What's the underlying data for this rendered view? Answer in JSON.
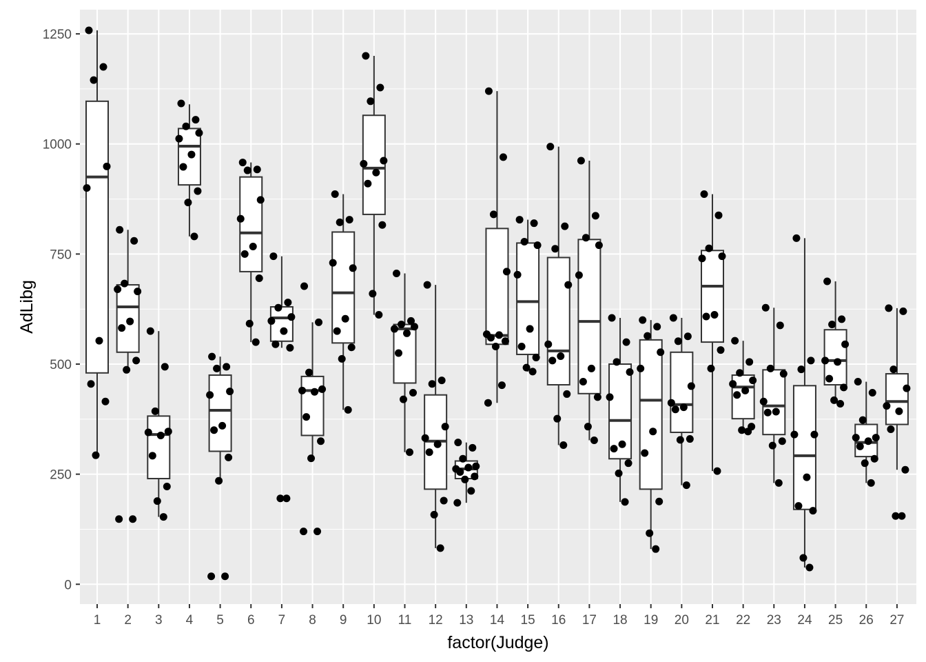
{
  "chart_data": {
    "type": "boxplot",
    "xlabel": "factor(Judge)",
    "ylabel": "AdLibg",
    "ylim": [
      -45,
      1305
    ],
    "yticks": [
      0,
      250,
      500,
      750,
      1000,
      1250
    ],
    "ytick_labels": [
      "0",
      "250",
      "500",
      "750",
      "1000",
      "1250"
    ],
    "categories": [
      "1",
      "2",
      "3",
      "4",
      "5",
      "6",
      "7",
      "8",
      "9",
      "10",
      "11",
      "12",
      "13",
      "14",
      "15",
      "16",
      "17",
      "18",
      "19",
      "20",
      "21",
      "22",
      "23",
      "24",
      "25",
      "26",
      "27"
    ],
    "boxes": [
      {
        "judge": "1",
        "lower_whisker": 293,
        "q1": 480,
        "median": 925,
        "q3": 1097,
        "upper_whisker": 1258
      },
      {
        "judge": "2",
        "lower_whisker": 487,
        "q1": 527,
        "median": 630,
        "q3": 680,
        "upper_whisker": 805
      },
      {
        "judge": "3",
        "lower_whisker": 153,
        "q1": 240,
        "median": 340,
        "q3": 382,
        "upper_whisker": 575
      },
      {
        "judge": "4",
        "lower_whisker": 790,
        "q1": 907,
        "median": 995,
        "q3": 1035,
        "upper_whisker": 1090
      },
      {
        "judge": "5",
        "lower_whisker": 235,
        "q1": 302,
        "median": 395,
        "q3": 475,
        "upper_whisker": 517
      },
      {
        "judge": "6",
        "lower_whisker": 550,
        "q1": 710,
        "median": 798,
        "q3": 925,
        "upper_whisker": 958
      },
      {
        "judge": "7",
        "lower_whisker": 537,
        "q1": 552,
        "median": 605,
        "q3": 630,
        "upper_whisker": 745
      },
      {
        "judge": "8",
        "lower_whisker": 285,
        "q1": 338,
        "median": 440,
        "q3": 472,
        "upper_whisker": 595
      },
      {
        "judge": "9",
        "lower_whisker": 396,
        "q1": 548,
        "median": 662,
        "q3": 800,
        "upper_whisker": 886
      },
      {
        "judge": "10",
        "lower_whisker": 612,
        "q1": 840,
        "median": 945,
        "q3": 1065,
        "upper_whisker": 1200
      },
      {
        "judge": "11",
        "lower_whisker": 300,
        "q1": 457,
        "median": 580,
        "q3": 590,
        "upper_whisker": 706
      },
      {
        "judge": "12",
        "lower_whisker": 82,
        "q1": 216,
        "median": 325,
        "q3": 430,
        "upper_whisker": 680
      },
      {
        "judge": "13",
        "lower_whisker": 185,
        "q1": 240,
        "median": 262,
        "q3": 280,
        "upper_whisker": 322
      },
      {
        "judge": "14",
        "lower_whisker": 412,
        "q1": 545,
        "median": 565,
        "q3": 808,
        "upper_whisker": 1120
      },
      {
        "judge": "15",
        "lower_whisker": 483,
        "q1": 522,
        "median": 642,
        "q3": 775,
        "upper_whisker": 828
      },
      {
        "judge": "16",
        "lower_whisker": 316,
        "q1": 453,
        "median": 530,
        "q3": 742,
        "upper_whisker": 994
      },
      {
        "judge": "17",
        "lower_whisker": 327,
        "q1": 433,
        "median": 597,
        "q3": 783,
        "upper_whisker": 962
      },
      {
        "judge": "18",
        "lower_whisker": 187,
        "q1": 285,
        "median": 372,
        "q3": 500,
        "upper_whisker": 605
      },
      {
        "judge": "19",
        "lower_whisker": 80,
        "q1": 216,
        "median": 418,
        "q3": 555,
        "upper_whisker": 600
      },
      {
        "judge": "20",
        "lower_whisker": 225,
        "q1": 345,
        "median": 408,
        "q3": 527,
        "upper_whisker": 605
      },
      {
        "judge": "21",
        "lower_whisker": 257,
        "q1": 550,
        "median": 677,
        "q3": 758,
        "upper_whisker": 886
      },
      {
        "judge": "22",
        "lower_whisker": 347,
        "q1": 376,
        "median": 448,
        "q3": 475,
        "upper_whisker": 553
      },
      {
        "judge": "23",
        "lower_whisker": 230,
        "q1": 340,
        "median": 405,
        "q3": 487,
        "upper_whisker": 628
      },
      {
        "judge": "24",
        "lower_whisker": 38,
        "q1": 170,
        "median": 292,
        "q3": 451,
        "upper_whisker": 786
      },
      {
        "judge": "25",
        "lower_whisker": 410,
        "q1": 453,
        "median": 508,
        "q3": 578,
        "upper_whisker": 688
      },
      {
        "judge": "26",
        "lower_whisker": 230,
        "q1": 290,
        "median": 322,
        "q3": 363,
        "upper_whisker": 460
      },
      {
        "judge": "27",
        "lower_whisker": 260,
        "q1": 363,
        "median": 415,
        "q3": 478,
        "upper_whisker": 627
      }
    ],
    "points": [
      {
        "judge": "1",
        "values": [
          1258,
          1175,
          1145,
          949,
          900,
          553,
          455,
          415,
          293
        ]
      },
      {
        "judge": "2",
        "values": [
          805,
          780,
          683,
          665,
          670,
          597,
          582,
          508,
          487,
          148,
          148
        ]
      },
      {
        "judge": "3",
        "values": [
          575,
          494,
          393,
          347,
          345,
          338,
          292,
          222,
          189,
          153
        ]
      },
      {
        "judge": "4",
        "values": [
          1092,
          1055,
          1040,
          1025,
          1012,
          976,
          948,
          893,
          867,
          790
        ]
      },
      {
        "judge": "5",
        "values": [
          517,
          494,
          490,
          438,
          430,
          360,
          350,
          288,
          235,
          18,
          18
        ]
      },
      {
        "judge": "6",
        "values": [
          958,
          942,
          940,
          873,
          830,
          767,
          750,
          695,
          592,
          550
        ]
      },
      {
        "judge": "7",
        "values": [
          745,
          640,
          628,
          607,
          598,
          575,
          545,
          537,
          195,
          195
        ]
      },
      {
        "judge": "8",
        "values": [
          677,
          595,
          481,
          443,
          440,
          437,
          380,
          325,
          286,
          120,
          120
        ]
      },
      {
        "judge": "9",
        "values": [
          886,
          828,
          822,
          718,
          730,
          603,
          575,
          538,
          512,
          396
        ]
      },
      {
        "judge": "10",
        "values": [
          1200,
          1128,
          1097,
          962,
          955,
          935,
          910,
          816,
          660,
          612
        ]
      },
      {
        "judge": "11",
        "values": [
          706,
          598,
          590,
          585,
          580,
          570,
          525,
          435,
          420,
          300
        ]
      },
      {
        "judge": "12",
        "values": [
          680,
          463,
          455,
          358,
          332,
          318,
          300,
          190,
          158,
          82
        ]
      },
      {
        "judge": "13",
        "values": [
          322,
          310,
          285,
          268,
          262,
          265,
          255,
          245,
          238,
          212,
          185
        ]
      },
      {
        "judge": "14",
        "values": [
          1120,
          970,
          840,
          710,
          568,
          566,
          560,
          552,
          540,
          452,
          412
        ]
      },
      {
        "judge": "15",
        "values": [
          828,
          820,
          778,
          770,
          703,
          580,
          540,
          515,
          492,
          483
        ]
      },
      {
        "judge": "16",
        "values": [
          994,
          813,
          762,
          680,
          545,
          518,
          508,
          432,
          376,
          316
        ]
      },
      {
        "judge": "17",
        "values": [
          962,
          837,
          787,
          770,
          702,
          490,
          460,
          425,
          358,
          327
        ]
      },
      {
        "judge": "18",
        "values": [
          605,
          550,
          505,
          482,
          425,
          318,
          308,
          275,
          252,
          187
        ]
      },
      {
        "judge": "19",
        "values": [
          600,
          585,
          564,
          527,
          490,
          347,
          298,
          188,
          116,
          80
        ]
      },
      {
        "judge": "20",
        "values": [
          605,
          563,
          552,
          450,
          412,
          402,
          397,
          330,
          328,
          225
        ]
      },
      {
        "judge": "21",
        "values": [
          886,
          838,
          763,
          745,
          740,
          612,
          608,
          532,
          490,
          257
        ]
      },
      {
        "judge": "22",
        "values": [
          553,
          505,
          480,
          463,
          455,
          440,
          430,
          358,
          350,
          347
        ]
      },
      {
        "judge": "23",
        "values": [
          628,
          588,
          490,
          478,
          415,
          392,
          390,
          325,
          315,
          230
        ]
      },
      {
        "judge": "24",
        "values": [
          786,
          508,
          488,
          340,
          340,
          243,
          178,
          167,
          60,
          38
        ]
      },
      {
        "judge": "25",
        "values": [
          688,
          602,
          590,
          545,
          508,
          505,
          467,
          447,
          418,
          410
        ]
      },
      {
        "judge": "26",
        "values": [
          460,
          435,
          373,
          333,
          333,
          325,
          313,
          285,
          275,
          230
        ]
      },
      {
        "judge": "27",
        "values": [
          627,
          620,
          488,
          445,
          405,
          393,
          352,
          260,
          155,
          155
        ]
      }
    ]
  }
}
